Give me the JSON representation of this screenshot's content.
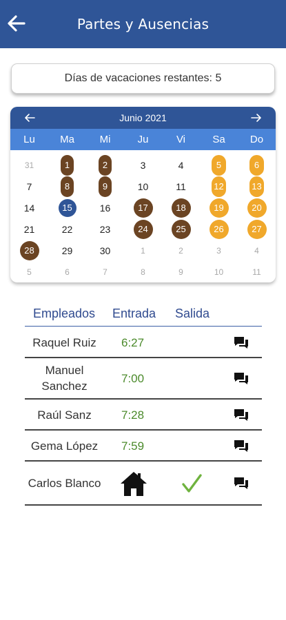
{
  "header": {
    "title": "Partes y Ausencias"
  },
  "vacation": {
    "label": "Días de vacaciones restantes: 5"
  },
  "calendar": {
    "month_label": "Junio 2021",
    "weekdays": [
      "Lu",
      "Ma",
      "Mi",
      "Ju",
      "Vi",
      "Sa",
      "Do"
    ],
    "weeks": [
      [
        {
          "d": "31",
          "s": "muted"
        },
        {
          "d": "1",
          "s": "brown"
        },
        {
          "d": "2",
          "s": "brown"
        },
        {
          "d": "3",
          "s": ""
        },
        {
          "d": "4",
          "s": ""
        },
        {
          "d": "5",
          "s": "orange"
        },
        {
          "d": "6",
          "s": "orange"
        }
      ],
      [
        {
          "d": "7",
          "s": ""
        },
        {
          "d": "8",
          "s": "brown"
        },
        {
          "d": "9",
          "s": "brown"
        },
        {
          "d": "10",
          "s": ""
        },
        {
          "d": "11",
          "s": ""
        },
        {
          "d": "12",
          "s": "orange"
        },
        {
          "d": "13",
          "s": "orange"
        }
      ],
      [
        {
          "d": "14",
          "s": ""
        },
        {
          "d": "15",
          "s": "blue"
        },
        {
          "d": "16",
          "s": ""
        },
        {
          "d": "17",
          "s": "brown circle"
        },
        {
          "d": "18",
          "s": "brown circle"
        },
        {
          "d": "19",
          "s": "orange circle"
        },
        {
          "d": "20",
          "s": "orange circle"
        }
      ],
      [
        {
          "d": "21",
          "s": ""
        },
        {
          "d": "22",
          "s": ""
        },
        {
          "d": "23",
          "s": ""
        },
        {
          "d": "24",
          "s": "brown circle"
        },
        {
          "d": "25",
          "s": "brown circle"
        },
        {
          "d": "26",
          "s": "orange circle"
        },
        {
          "d": "27",
          "s": "orange circle"
        }
      ],
      [
        {
          "d": "28",
          "s": "brown circle"
        },
        {
          "d": "29",
          "s": ""
        },
        {
          "d": "30",
          "s": ""
        },
        {
          "d": "1",
          "s": "muted"
        },
        {
          "d": "2",
          "s": "muted"
        },
        {
          "d": "3",
          "s": "muted"
        },
        {
          "d": "4",
          "s": "muted"
        }
      ],
      [
        {
          "d": "5",
          "s": "muted"
        },
        {
          "d": "6",
          "s": "muted"
        },
        {
          "d": "7",
          "s": "muted"
        },
        {
          "d": "8",
          "s": "muted"
        },
        {
          "d": "9",
          "s": "muted"
        },
        {
          "d": "10",
          "s": "muted"
        },
        {
          "d": "11",
          "s": "muted"
        }
      ]
    ],
    "colors": {
      "absence": "#6b4423",
      "weekend": "#f0a82b",
      "today": "#2f5597"
    }
  },
  "employees": {
    "headers": {
      "name": "Empleados",
      "entry": "Entrada",
      "exit": "Salida"
    },
    "rows": [
      {
        "name": "Raquel Ruiz",
        "entry": "6:27",
        "status": "time"
      },
      {
        "name": "Manuel Sanchez",
        "entry": "7:00",
        "status": "time"
      },
      {
        "name": "Raúl Sanz",
        "entry": "7:28",
        "status": "time"
      },
      {
        "name": "Gema López",
        "entry": "7:59",
        "status": "time"
      },
      {
        "name": "Carlos Blanco",
        "entry": "",
        "status": "home-checked"
      }
    ]
  },
  "icons": {
    "back": "arrow-left-icon",
    "chat": "chat-bubbles-icon",
    "home": "home-icon",
    "check": "checkmark-icon"
  }
}
